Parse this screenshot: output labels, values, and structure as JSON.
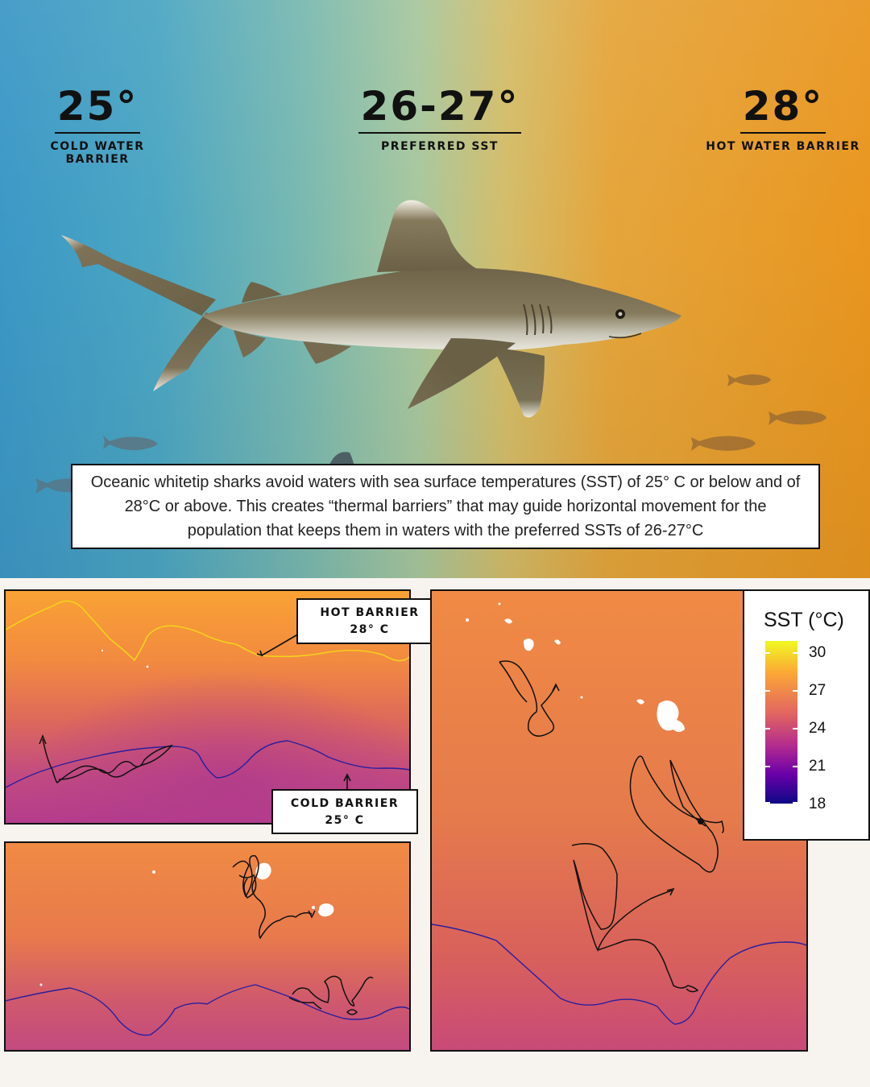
{
  "barriers": {
    "cold": {
      "value": "25°",
      "label": "COLD WATER BARRIER"
    },
    "preferred": {
      "value": "26-27°",
      "label": "PREFERRED SST"
    },
    "hot": {
      "value": "28°",
      "label": "HOT WATER BARRIER"
    }
  },
  "caption": "Oceanic whitetip sharks avoid waters with sea surface temperatures (SST) of 25° C or below and of 28°C or above. This creates “thermal barriers” that may guide horizontal movement for the population that keeps them in waters with the preferred  SSTs of 26-27°C",
  "callouts": {
    "hot": {
      "line1": "HOT BARRIER",
      "line2": "28° C"
    },
    "cold": {
      "line1": "COLD BARRIER",
      "line2": "25° C"
    }
  },
  "legend": {
    "title": "SST (°C)",
    "ticks": [
      "30",
      "27",
      "24",
      "21",
      "18"
    ]
  },
  "colors": {
    "hot_contour": "#f2d21c",
    "cold_contour": "#2b1e9e",
    "track": "#111111",
    "island": "#ffffff"
  },
  "icons": [
    "shark-illustration",
    "fish-icon"
  ]
}
